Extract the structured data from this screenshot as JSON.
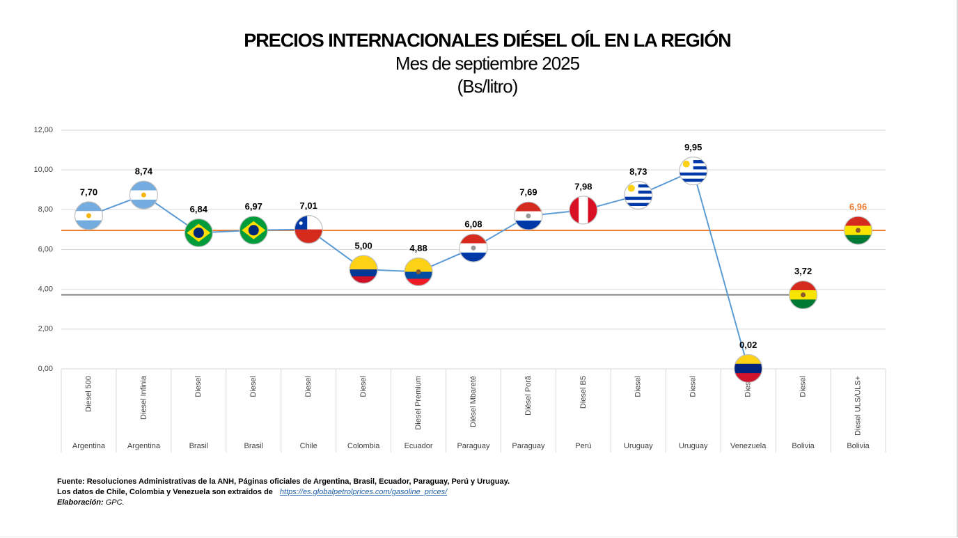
{
  "chart_data": {
    "type": "line",
    "title": "PRECIOS INTERNACIONALES DIÉSEL OÍL EN LA REGIÓN",
    "subtitle": "Mes de septiembre 2025",
    "unit": "(Bs/litro)",
    "categories": [
      "Diesel 500",
      "Diesel Infinia",
      "Diesel",
      "Diesel",
      "Diesel",
      "Diesel",
      "Diesel Premium",
      "Diésel Mbareté",
      "Diésel Porã",
      "Diesel B5",
      "Diesel",
      "Diesel",
      "Diesel",
      "Diesel",
      "Diesel ULS/ULS+"
    ],
    "groups": [
      "Argentina",
      "Argentina",
      "Brasil",
      "Brasil",
      "Chile",
      "Colombia",
      "Ecuador",
      "Paraguay",
      "Paraguay",
      "Perú",
      "Uruguay",
      "Uruguay",
      "Venezuela",
      "Bolivia",
      "Bolivia"
    ],
    "series": [
      {
        "color": "#5b9bd5",
        "label_color": "#000000",
        "line": true,
        "values": [
          7.7,
          8.74,
          6.84,
          6.97,
          7.01,
          5.0,
          4.88,
          6.08,
          7.69,
          7.98,
          8.73,
          9.95,
          0.02,
          null,
          null
        ],
        "value_labels": [
          "7,70",
          "8,74",
          "6,84",
          "6,97",
          "7,01",
          "5,00",
          "4,88",
          "6,08",
          "7,69",
          "7,98",
          "8,73",
          "9,95",
          "0,02",
          null,
          null
        ]
      },
      {
        "color": "#808080",
        "label_color": "#000000",
        "hline": true,
        "values": [
          null,
          null,
          null,
          null,
          null,
          null,
          null,
          null,
          null,
          null,
          null,
          null,
          null,
          3.72,
          null
        ],
        "value_labels": [
          null,
          null,
          null,
          null,
          null,
          null,
          null,
          null,
          null,
          null,
          null,
          null,
          null,
          "3,72",
          null
        ]
      },
      {
        "color": "#ed7d31",
        "label_color": "#ed7d31",
        "hline": true,
        "values": [
          null,
          null,
          null,
          null,
          null,
          null,
          null,
          null,
          null,
          null,
          null,
          null,
          null,
          null,
          6.96
        ],
        "value_labels": [
          null,
          null,
          null,
          null,
          null,
          null,
          null,
          null,
          null,
          null,
          null,
          null,
          null,
          null,
          "6,96"
        ]
      }
    ],
    "ylim": [
      0,
      12
    ],
    "yticks": [
      {
        "value": 0,
        "label": "0,00"
      },
      {
        "value": 2,
        "label": "2,00"
      },
      {
        "value": 4,
        "label": "4,00"
      },
      {
        "value": 6,
        "label": "6,00"
      },
      {
        "value": 8,
        "label": "8,00"
      },
      {
        "value": 10,
        "label": "10,00"
      },
      {
        "value": 12,
        "label": "12,00"
      }
    ],
    "grid": true
  },
  "footer": {
    "source": "Fuente: Resoluciones Administrativas de la ANH, Páginas oficiales de Argentina, Brasil, Ecuador, Paraguay, Perú y Uruguay.",
    "note": "Los datos de Chile, Colombia y Venezuela son extraídos de",
    "link": "https://es.globalpetrolprices.com/gasoline_prices/",
    "credit_label": "Elaboración:",
    "credit": "GPC."
  }
}
